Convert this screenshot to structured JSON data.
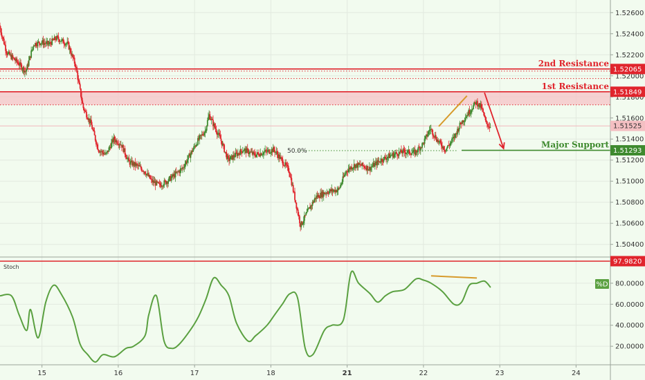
{
  "chart_data": [
    {
      "type": "candlestick",
      "ylim": [
        1.5028,
        1.5272
      ],
      "y_ticks": [
        "1.52600",
        "1.52400",
        "1.52200",
        "1.52000",
        "1.51800",
        "1.51600",
        "1.51400",
        "1.51200",
        "1.51000",
        "1.50800",
        "1.50600",
        "1.50400"
      ],
      "x_ticks": [
        "15",
        "16",
        "17",
        "18",
        "21",
        "22",
        "23",
        "24"
      ],
      "x_tick_days": [
        1,
        2,
        3,
        4,
        5,
        6,
        7,
        8
      ],
      "x_range_days": [
        0.45,
        8.45
      ],
      "bold_x_tick": "21",
      "grid": true,
      "price_path": [
        [
          0.45,
          1.5248
        ],
        [
          0.55,
          1.5222
        ],
        [
          0.7,
          1.5212
        ],
        [
          0.8,
          1.5204
        ],
        [
          0.9,
          1.523
        ],
        [
          1.0,
          1.5232
        ],
        [
          1.1,
          1.523
        ],
        [
          1.2,
          1.5236
        ],
        [
          1.35,
          1.523
        ],
        [
          1.45,
          1.521
        ],
        [
          1.55,
          1.517
        ],
        [
          1.65,
          1.5155
        ],
        [
          1.75,
          1.513
        ],
        [
          1.85,
          1.5125
        ],
        [
          1.95,
          1.514
        ],
        [
          2.05,
          1.5135
        ],
        [
          2.15,
          1.5118
        ],
        [
          2.25,
          1.5115
        ],
        [
          2.35,
          1.511
        ],
        [
          2.45,
          1.51
        ],
        [
          2.55,
          1.5096
        ],
        [
          2.65,
          1.51
        ],
        [
          2.75,
          1.5106
        ],
        [
          2.85,
          1.5112
        ],
        [
          2.95,
          1.5125
        ],
        [
          3.05,
          1.5138
        ],
        [
          3.15,
          1.5148
        ],
        [
          3.2,
          1.5163
        ],
        [
          3.25,
          1.5155
        ],
        [
          3.35,
          1.514
        ],
        [
          3.45,
          1.512
        ],
        [
          3.55,
          1.5125
        ],
        [
          3.65,
          1.513
        ],
        [
          3.8,
          1.5125
        ],
        [
          3.95,
          1.5128
        ],
        [
          4.05,
          1.513
        ],
        [
          4.15,
          1.512
        ],
        [
          4.25,
          1.511
        ],
        [
          4.35,
          1.5075
        ],
        [
          4.4,
          1.5058
        ],
        [
          4.5,
          1.5072
        ],
        [
          4.6,
          1.5085
        ],
        [
          4.75,
          1.509
        ],
        [
          4.9,
          1.5092
        ],
        [
          5.0,
          1.511
        ],
        [
          5.1,
          1.5115
        ],
        [
          5.2,
          1.5115
        ],
        [
          5.3,
          1.5112
        ],
        [
          5.45,
          1.512
        ],
        [
          5.6,
          1.5125
        ],
        [
          5.75,
          1.5128
        ],
        [
          5.9,
          1.5127
        ],
        [
          6.0,
          1.5135
        ],
        [
          6.1,
          1.515
        ],
        [
          6.2,
          1.5138
        ],
        [
          6.3,
          1.513
        ],
        [
          6.4,
          1.514
        ],
        [
          6.5,
          1.5155
        ],
        [
          6.6,
          1.5165
        ],
        [
          6.7,
          1.5175
        ],
        [
          6.77,
          1.517
        ],
        [
          6.83,
          1.5155
        ],
        [
          6.88,
          1.5152
        ]
      ],
      "levels": [
        {
          "label": "2nd Resistance",
          "value": 1.52065,
          "price_tag": "1.52065",
          "color": "#e0242c"
        },
        {
          "label": "1st Resistance",
          "value": 1.51849,
          "price_tag": "1.51849",
          "color": "#e0242c",
          "zone": [
            1.51725,
            1.51849
          ]
        },
        {
          "label": "Major Support",
          "value": 1.51293,
          "price_tag": "1.51293",
          "color": "#3e8a2e",
          "from_day": 6.5
        }
      ],
      "current_price": {
        "value": 1.51525,
        "price_tag": "1.51525",
        "color": "#f4bfc2"
      },
      "fib_level": {
        "label": "50.0%",
        "value": 1.5129,
        "from_day": 4.35,
        "to_day": 6.45,
        "color": "#3e8a2e"
      },
      "extra_dotted_levels": [
        1.52045,
        1.51975,
        1.51725
      ],
      "trendline_price": {
        "from": [
          6.2,
          1.5152
        ],
        "to": [
          6.57,
          1.5181
        ],
        "color": "#d79a2a"
      },
      "projection_arrow": {
        "from": [
          6.8,
          1.5184
        ],
        "to": [
          7.05,
          1.5131
        ],
        "color": "#e0242c"
      },
      "up_color": "#3e8a2e",
      "down_color": "#e0242c"
    },
    {
      "type": "line",
      "title": "Stoch",
      "legend": "%D",
      "ylim": [
        3,
        101
      ],
      "y_ticks": [
        "80.0000",
        "60.0000",
        "40.0000",
        "20.0000"
      ],
      "top_tag": "97.9820",
      "x": [
        0.45,
        0.6,
        0.7,
        0.8,
        0.85,
        0.95,
        1.05,
        1.15,
        1.25,
        1.4,
        1.5,
        1.6,
        1.7,
        1.8,
        1.95,
        2.1,
        2.2,
        2.35,
        2.4,
        2.5,
        2.6,
        2.7,
        2.8,
        2.95,
        3.05,
        3.15,
        3.25,
        3.35,
        3.45,
        3.55,
        3.7,
        3.8,
        3.95,
        4.05,
        4.15,
        4.25,
        4.35,
        4.45,
        4.55,
        4.7,
        4.8,
        4.95,
        5.05,
        5.15,
        5.3,
        5.4,
        5.5,
        5.6,
        5.75,
        5.9,
        6.0,
        6.1,
        6.25,
        6.4,
        6.5,
        6.6,
        6.7,
        6.8,
        6.88
      ],
      "values": [
        68,
        68,
        50,
        35,
        55,
        28,
        62,
        78,
        70,
        48,
        22,
        12,
        5,
        12,
        10,
        18,
        20,
        30,
        50,
        68,
        25,
        18,
        22,
        36,
        48,
        65,
        85,
        78,
        68,
        42,
        25,
        30,
        40,
        50,
        60,
        70,
        66,
        18,
        12,
        35,
        40,
        45,
        90,
        80,
        70,
        62,
        68,
        72,
        74,
        84,
        83,
        80,
        72,
        60,
        62,
        78,
        80,
        82,
        76
      ],
      "trendline": {
        "from": [
          6.1,
          87
        ],
        "to": [
          6.7,
          85
        ],
        "color": "#d79a2a"
      },
      "line_color": "#5aa040"
    }
  ]
}
